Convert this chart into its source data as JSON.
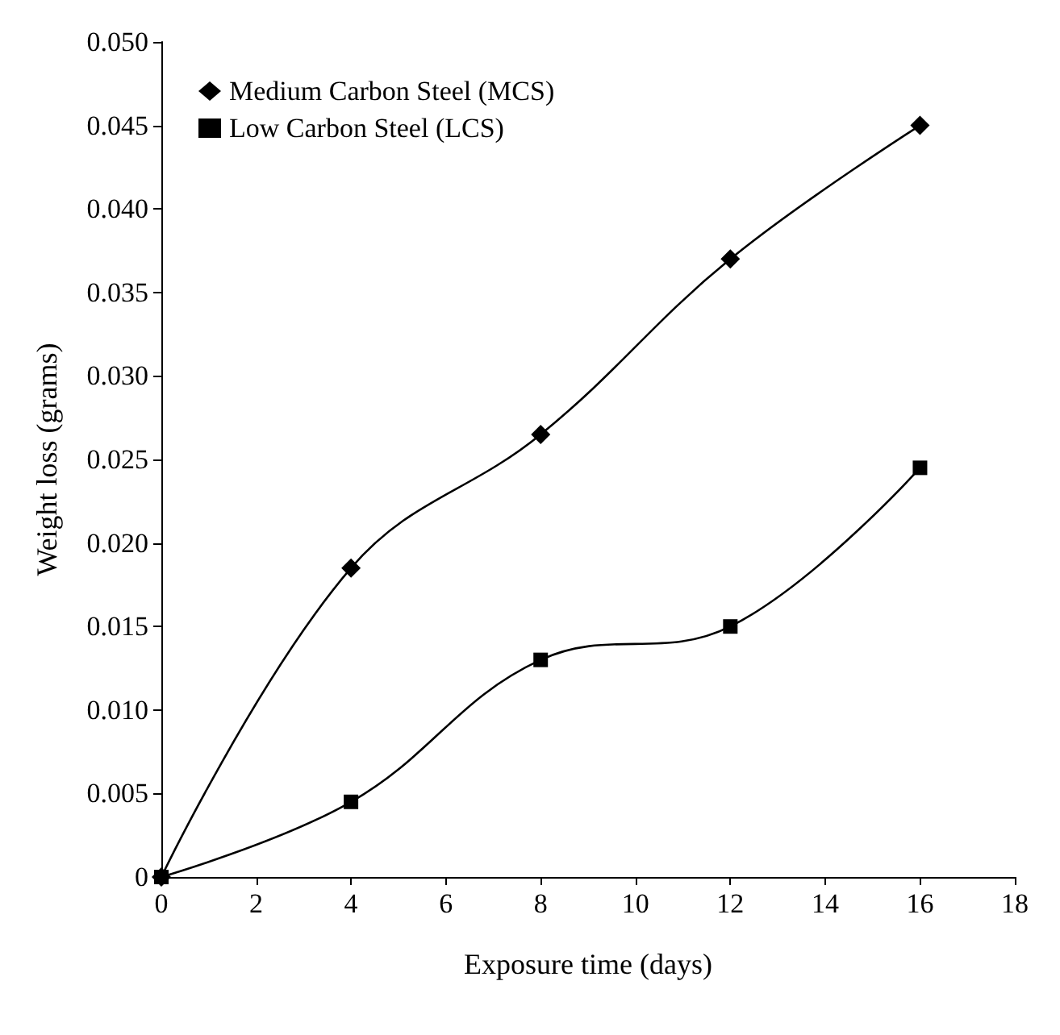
{
  "chart_data": {
    "type": "line",
    "xlabel": "Exposure time (days)",
    "ylabel": "Weight loss (grams)",
    "x": [
      0,
      4,
      8,
      12,
      16
    ],
    "series": [
      {
        "name": "Medium Carbon Steel (MCS)",
        "color": "#000000",
        "marker": "diamond",
        "values": [
          0,
          0.0185,
          0.0265,
          0.037,
          0.045
        ]
      },
      {
        "name": "Low Carbon Steel (LCS)",
        "color": "#000000",
        "marker": "square",
        "values": [
          0,
          0.0045,
          0.013,
          0.015,
          0.0245
        ]
      }
    ],
    "xlim": [
      0,
      18
    ],
    "xticks": [
      0,
      2,
      4,
      6,
      8,
      10,
      12,
      14,
      16,
      18
    ],
    "ylim": [
      0,
      0.05
    ],
    "yticks": [
      0,
      0.005,
      {
        "value": 0.01,
        "label": "0.010"
      },
      0.015,
      {
        "value": 0.02,
        "label": "0.020"
      },
      0.025,
      {
        "value": 0.03,
        "label": "0.030"
      },
      0.035,
      {
        "value": 0.04,
        "label": "0.040"
      },
      0.045,
      {
        "value": 0.05,
        "label": "0.050"
      }
    ],
    "grid": false,
    "legend": "top left",
    "line_style": "solid"
  }
}
